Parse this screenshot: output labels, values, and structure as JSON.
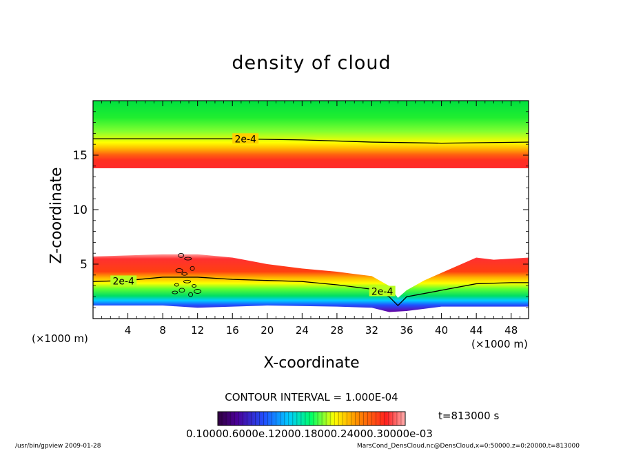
{
  "chart_data": {
    "type": "heatmap",
    "title": "density of cloud",
    "xlabel": "X-coordinate",
    "ylabel": "Z-coordinate",
    "x_unit_left": "(×1000 m)",
    "x_unit_right": "(×1000 m)",
    "xlim": [
      0,
      50
    ],
    "ylim": [
      0,
      20
    ],
    "x_ticks": [
      "4",
      "8",
      "12",
      "16",
      "20",
      "24",
      "28",
      "32",
      "36",
      "40",
      "44",
      "48"
    ],
    "y_ticks": [
      "5",
      "10",
      "15"
    ],
    "upper_layer": {
      "z_bottom": 13.8,
      "z_top": 20,
      "peak_z": 15.0
    },
    "lower_layer_top": [
      [
        0,
        5.7
      ],
      [
        4,
        5.8
      ],
      [
        8,
        5.9
      ],
      [
        12,
        5.9
      ],
      [
        16,
        5.6
      ],
      [
        20,
        5.0
      ],
      [
        24,
        4.6
      ],
      [
        28,
        4.3
      ],
      [
        32,
        3.9
      ],
      [
        34,
        3.0
      ],
      [
        35,
        1.9
      ],
      [
        36,
        2.6
      ],
      [
        38,
        3.5
      ],
      [
        40,
        4.2
      ],
      [
        44,
        5.6
      ],
      [
        46,
        5.4
      ],
      [
        50,
        5.6
      ]
    ],
    "lower_layer_bottom": [
      [
        0,
        1.2
      ],
      [
        8,
        1.2
      ],
      [
        12,
        1.0
      ],
      [
        20,
        1.2
      ],
      [
        28,
        1.1
      ],
      [
        32,
        1.0
      ],
      [
        34,
        0.6
      ],
      [
        36,
        0.7
      ],
      [
        40,
        1.1
      ],
      [
        50,
        1.1
      ]
    ],
    "contour_lines": [
      {
        "label": "2e-4",
        "points": [
          [
            0,
            16.5
          ],
          [
            16,
            16.5
          ],
          [
            24,
            16.4
          ],
          [
            32,
            16.2
          ],
          [
            40,
            16.1
          ],
          [
            50,
            16.2
          ]
        ]
      },
      {
        "label": "2e-4",
        "points": [
          [
            0,
            3.4
          ],
          [
            4,
            3.5
          ],
          [
            8,
            3.8
          ],
          [
            12,
            3.8
          ],
          [
            16,
            3.6
          ],
          [
            20,
            3.5
          ],
          [
            24,
            3.4
          ],
          [
            28,
            3.1
          ],
          [
            32,
            2.7
          ],
          [
            34,
            2.0
          ],
          [
            35,
            1.2
          ],
          [
            36,
            2.0
          ],
          [
            40,
            2.6
          ],
          [
            44,
            3.2
          ],
          [
            48,
            3.3
          ],
          [
            50,
            3.3
          ]
        ]
      }
    ],
    "contour_interval_text": "CONTOUR INTERVAL = 1.000E-04",
    "colorbar_ticks": "0.10000.6000e.12000.18000.24000.30000e-03",
    "time_label": "t=813000 s",
    "color_scale": [
      "#4b0096",
      "#2040ff",
      "#00ccff",
      "#00ff66",
      "#ffff00",
      "#ff8800",
      "#ff2020",
      "#ffb0b0"
    ]
  },
  "footer": {
    "left": "/usr/bin/gpview  2009-01-28",
    "right": "MarsCond_DensCloud.nc@DensCloud,x=0:50000,z=0:20000,t=813000"
  }
}
